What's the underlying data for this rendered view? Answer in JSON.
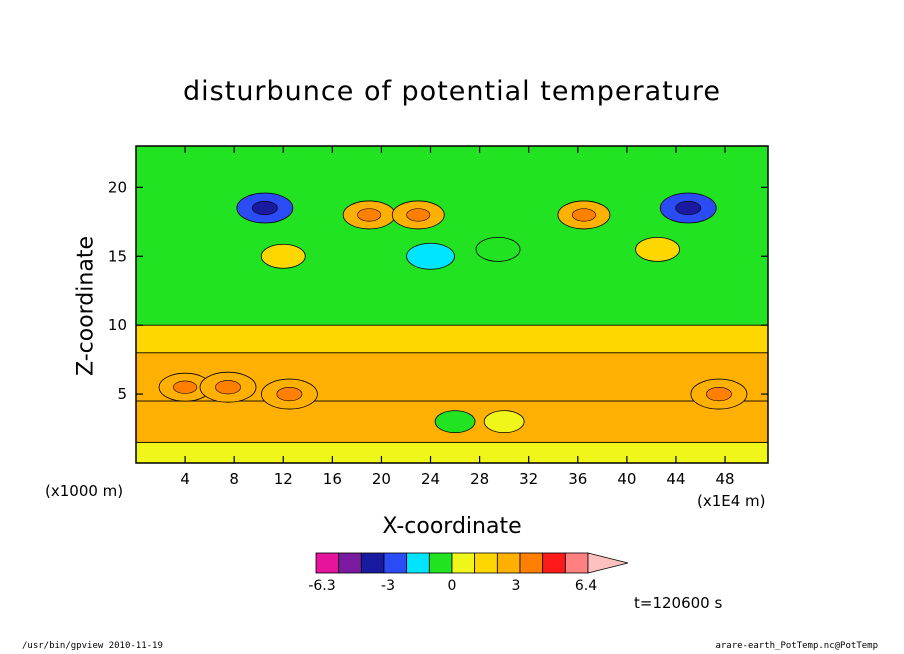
{
  "chart_data": {
    "type": "heatmap",
    "title": "disturbunce of potential temperature",
    "xlabel": "X-coordinate",
    "ylabel": "Z-coordinate",
    "x_unit_label": "(x1000 m)",
    "x_scale_label": "(x1E4 m)",
    "xlim": [
      0,
      51.5
    ],
    "ylim": [
      0,
      23
    ],
    "x_ticks": [
      4,
      8,
      12,
      16,
      20,
      24,
      28,
      32,
      36,
      40,
      44,
      48
    ],
    "y_ticks": [
      5,
      10,
      15,
      20
    ],
    "time_label": "t=120600 s",
    "colorbar": {
      "colors": [
        "#e6139c",
        "#7a1aa0",
        "#1a1aa0",
        "#2b4cf5",
        "#00e5ff",
        "#22e322",
        "#f0f51a",
        "#ffd700",
        "#ffb000",
        "#ff8000",
        "#ff1a1a",
        "#ff8080",
        "#ffc0c0"
      ],
      "tick_labels": [
        "-6.3",
        "-3",
        "0",
        "3",
        "6.4"
      ]
    },
    "bands": [
      {
        "z_top": 1.5,
        "level": 0.5
      },
      {
        "z_top": 4.5,
        "level": 2.0
      },
      {
        "z_top": 8.0,
        "level": 2.0
      },
      {
        "z_top": 10.0,
        "level": 1.0
      },
      {
        "z_top": 23.0,
        "level": -0.5
      }
    ],
    "features": [
      {
        "x": 4.0,
        "z": 5.5,
        "level": 2.0
      },
      {
        "x": 7.5,
        "z": 5.5,
        "level": 2.5
      },
      {
        "x": 12.5,
        "z": 5.0,
        "level": 2.5
      },
      {
        "x": 26.0,
        "z": 3.0,
        "level": -0.5
      },
      {
        "x": 30.0,
        "z": 3.0,
        "level": 0.5
      },
      {
        "x": 47.5,
        "z": 5.0,
        "level": 2.5
      },
      {
        "x": 10.5,
        "z": 18.5,
        "level": -2.5
      },
      {
        "x": 45.0,
        "z": 18.5,
        "level": -2.5
      },
      {
        "x": 24.0,
        "z": 15.0,
        "level": -1.5
      },
      {
        "x": 29.5,
        "z": 15.5,
        "level": -1.0
      },
      {
        "x": 19.0,
        "z": 18.0,
        "level": 2.0
      },
      {
        "x": 36.5,
        "z": 18.0,
        "level": 2.0
      },
      {
        "x": 12.0,
        "z": 15.0,
        "level": 1.0
      },
      {
        "x": 42.5,
        "z": 15.5,
        "level": 1.0
      },
      {
        "x": 23.0,
        "z": 18.0,
        "level": 2.0
      }
    ]
  },
  "footer": {
    "left": "/usr/bin/gpview  2010-11-19",
    "right": "arare-earth_PotTemp.nc@PotTemp"
  }
}
